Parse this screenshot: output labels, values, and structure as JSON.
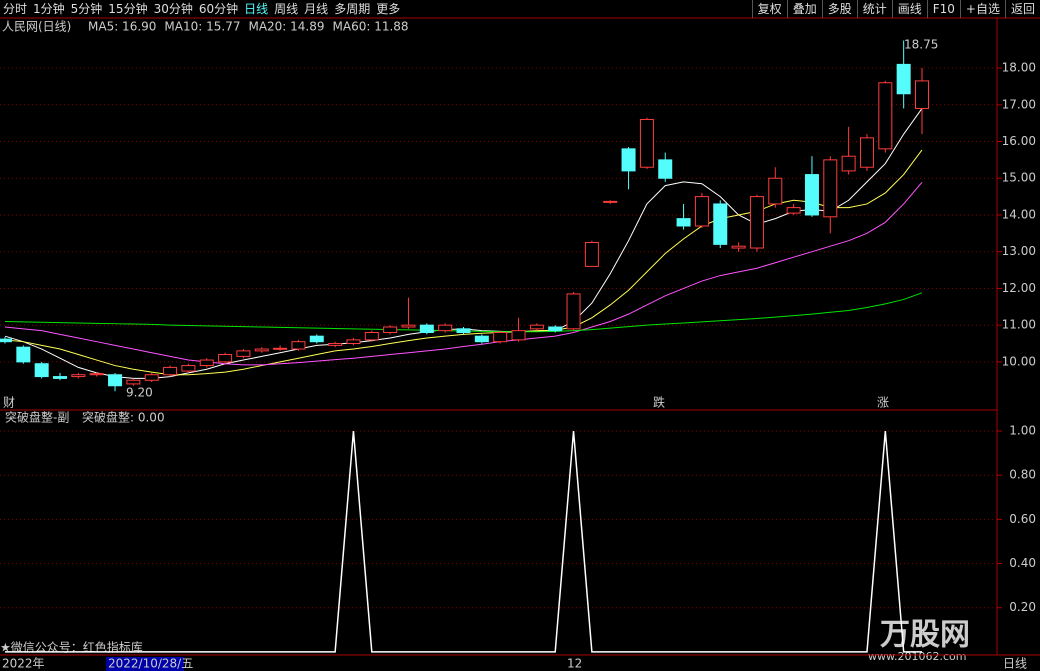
{
  "toolbar": {
    "tabs": [
      "分时",
      "1分钟",
      "5分钟",
      "15分钟",
      "30分钟",
      "60分钟",
      "日线",
      "周线",
      "月线",
      "多周期",
      "更多"
    ],
    "active_tab": 6,
    "buttons": [
      "复权",
      "叠加",
      "多股",
      "统计",
      "画线",
      "F10",
      "+自选",
      "返回"
    ]
  },
  "chart_data": [
    {
      "type": "candlestick",
      "title": "人民网(日线)",
      "open": [
        10.62,
        10.4,
        9.95,
        9.6,
        9.6,
        9.65,
        9.65,
        9.4,
        9.5,
        9.65,
        9.75,
        9.9,
        10.0,
        10.15,
        10.3,
        10.35,
        10.35,
        10.7,
        10.45,
        10.5,
        10.6,
        10.8,
        10.95,
        11.0,
        10.85,
        10.9,
        10.7,
        10.55,
        10.6,
        10.9,
        10.95,
        10.9,
        12.6,
        14.35,
        15.8,
        15.3,
        15.5,
        13.9,
        13.7,
        14.3,
        13.1,
        13.1,
        14.3,
        14.05,
        15.1,
        13.95,
        15.2,
        15.3,
        15.8,
        18.1,
        16.9
      ],
      "high": [
        10.68,
        10.45,
        10.0,
        9.7,
        9.7,
        9.72,
        9.7,
        9.55,
        9.7,
        9.9,
        9.95,
        10.1,
        10.25,
        10.35,
        10.4,
        10.45,
        10.6,
        10.75,
        10.55,
        10.65,
        10.85,
        11.0,
        11.75,
        11.05,
        11.05,
        10.95,
        10.75,
        10.85,
        11.2,
        11.05,
        11.0,
        11.9,
        13.3,
        14.4,
        15.85,
        16.65,
        15.7,
        14.3,
        14.6,
        14.4,
        13.25,
        14.55,
        15.3,
        14.3,
        15.6,
        15.6,
        16.4,
        16.2,
        17.65,
        18.75,
        18.0
      ],
      "low": [
        10.5,
        9.95,
        9.55,
        9.5,
        9.55,
        9.6,
        9.2,
        9.35,
        9.45,
        9.6,
        9.7,
        9.85,
        9.95,
        10.1,
        10.25,
        10.3,
        10.3,
        10.5,
        10.4,
        10.45,
        10.55,
        10.75,
        10.9,
        10.75,
        10.8,
        10.75,
        10.5,
        10.5,
        10.55,
        10.85,
        10.8,
        10.85,
        12.6,
        14.3,
        14.7,
        15.25,
        14.9,
        13.6,
        13.65,
        13.1,
        13.0,
        13.0,
        14.2,
        14.0,
        13.95,
        13.5,
        15.1,
        15.2,
        15.7,
        16.9,
        16.2
      ],
      "close": [
        10.55,
        10.0,
        9.6,
        9.55,
        9.65,
        9.68,
        9.35,
        9.5,
        9.65,
        9.85,
        9.9,
        10.05,
        10.2,
        10.3,
        10.35,
        10.37,
        10.55,
        10.55,
        10.5,
        10.6,
        10.8,
        10.95,
        11.0,
        10.8,
        11.0,
        10.8,
        10.55,
        10.8,
        10.85,
        11.0,
        10.85,
        11.85,
        13.25,
        14.37,
        15.2,
        16.6,
        15.0,
        13.7,
        14.5,
        13.2,
        13.15,
        14.5,
        15.0,
        14.2,
        14.0,
        15.5,
        15.6,
        16.1,
        17.6,
        17.3,
        17.65
      ],
      "up_color": "#ff3c3c",
      "down_color": "#54fcfc",
      "series": [
        {
          "name": "MA5",
          "label": "MA5: 16.90",
          "color": "#ffffff",
          "values": [
            10.7,
            10.55,
            10.35,
            10.1,
            9.85,
            9.7,
            9.6,
            9.55,
            9.55,
            9.6,
            9.7,
            9.8,
            9.95,
            10.05,
            10.15,
            10.25,
            10.35,
            10.45,
            10.48,
            10.52,
            10.58,
            10.65,
            10.75,
            10.82,
            10.88,
            10.9,
            10.85,
            10.83,
            10.82,
            10.84,
            10.85,
            11.1,
            11.6,
            12.4,
            13.3,
            14.3,
            14.8,
            14.9,
            14.85,
            14.5,
            14.0,
            13.75,
            13.9,
            14.1,
            14.15,
            14.1,
            14.4,
            14.9,
            15.4,
            16.2,
            16.9
          ]
        },
        {
          "name": "MA10",
          "label": "MA10: 15.77",
          "color": "#ffff54",
          "values": [
            10.6,
            10.55,
            10.45,
            10.35,
            10.2,
            10.05,
            9.9,
            9.8,
            9.72,
            9.65,
            9.65,
            9.68,
            9.72,
            9.8,
            9.9,
            10.0,
            10.1,
            10.2,
            10.3,
            10.35,
            10.42,
            10.5,
            10.58,
            10.65,
            10.7,
            10.75,
            10.78,
            10.8,
            10.82,
            10.85,
            10.86,
            10.95,
            11.2,
            11.55,
            11.95,
            12.45,
            12.95,
            13.35,
            13.7,
            13.9,
            14.0,
            14.1,
            14.3,
            14.4,
            14.35,
            14.2,
            14.2,
            14.3,
            14.6,
            15.1,
            15.77
          ]
        },
        {
          "name": "MA20",
          "label": "MA20: 14.89",
          "color": "#ff54ff",
          "values": [
            10.95,
            10.9,
            10.85,
            10.75,
            10.65,
            10.55,
            10.45,
            10.35,
            10.25,
            10.15,
            10.05,
            10.0,
            9.95,
            9.92,
            9.92,
            9.95,
            9.98,
            10.02,
            10.06,
            10.1,
            10.15,
            10.2,
            10.25,
            10.3,
            10.35,
            10.42,
            10.48,
            10.55,
            10.6,
            10.65,
            10.7,
            10.8,
            10.95,
            11.1,
            11.3,
            11.55,
            11.8,
            12.0,
            12.2,
            12.35,
            12.45,
            12.55,
            12.7,
            12.85,
            13.0,
            13.15,
            13.3,
            13.5,
            13.8,
            14.3,
            14.89
          ]
        },
        {
          "name": "MA60",
          "label": "MA60: 11.88",
          "color": "#00e600",
          "values": [
            11.1,
            11.09,
            11.08,
            11.07,
            11.06,
            11.05,
            11.04,
            11.03,
            11.02,
            11.0,
            10.99,
            10.98,
            10.97,
            10.96,
            10.95,
            10.94,
            10.93,
            10.92,
            10.91,
            10.9,
            10.89,
            10.88,
            10.87,
            10.86,
            10.85,
            10.84,
            10.83,
            10.82,
            10.82,
            10.82,
            10.83,
            10.85,
            10.88,
            10.92,
            10.96,
            11.0,
            11.03,
            11.06,
            11.09,
            11.12,
            11.15,
            11.18,
            11.22,
            11.26,
            11.3,
            11.35,
            11.4,
            11.48,
            11.58,
            11.7,
            11.88
          ]
        }
      ],
      "ylim": [
        8.69,
        18.9
      ],
      "yticks": [
        {
          "value": 10,
          "label": "10.00"
        },
        {
          "value": 11,
          "label": "11.00"
        },
        {
          "value": 12,
          "label": "12.00"
        },
        {
          "value": 13,
          "label": "13.00"
        },
        {
          "value": 14,
          "label": "14.00"
        },
        {
          "value": 15,
          "label": "15.00"
        },
        {
          "value": 16,
          "label": "16.00"
        },
        {
          "value": 17,
          "label": "17.00"
        },
        {
          "value": 18,
          "label": "18.00"
        }
      ],
      "high_label": "18.75",
      "low_label": "9.20",
      "markers": [
        "财",
        "跌",
        "涨"
      ]
    },
    {
      "type": "line",
      "title": "突破盘整-副",
      "series": [
        {
          "name": "突破盘整",
          "label": "突破盘整: 0.00",
          "color": "#ffffff",
          "values": [
            0,
            0,
            0,
            0,
            0,
            0,
            0,
            0,
            0,
            0,
            0,
            0,
            0,
            0,
            0,
            0,
            0,
            0,
            0,
            1,
            0,
            0,
            0,
            0,
            0,
            0,
            0,
            0,
            0,
            0,
            0,
            1,
            0,
            0,
            0,
            0,
            0,
            0,
            0,
            0,
            0,
            0,
            0,
            0,
            0,
            0,
            0,
            0,
            1,
            0,
            0
          ]
        }
      ],
      "ylim": [
        -0.014,
        1.05
      ],
      "yticks": [
        {
          "value": 0.2,
          "label": "0.20"
        },
        {
          "value": 0.4,
          "label": "0.40"
        },
        {
          "value": 0.6,
          "label": "0.60"
        },
        {
          "value": 0.8,
          "label": "0.80"
        },
        {
          "value": 1,
          "label": "1.00"
        }
      ]
    }
  ],
  "footer": {
    "year": "2022年",
    "cursor_date": "2022/10/28/五",
    "month": "12",
    "period": "日线"
  },
  "watermark": {
    "text": "★微信公众号：红色指标库",
    "logo": "万股网",
    "url": "www.201062.com"
  }
}
